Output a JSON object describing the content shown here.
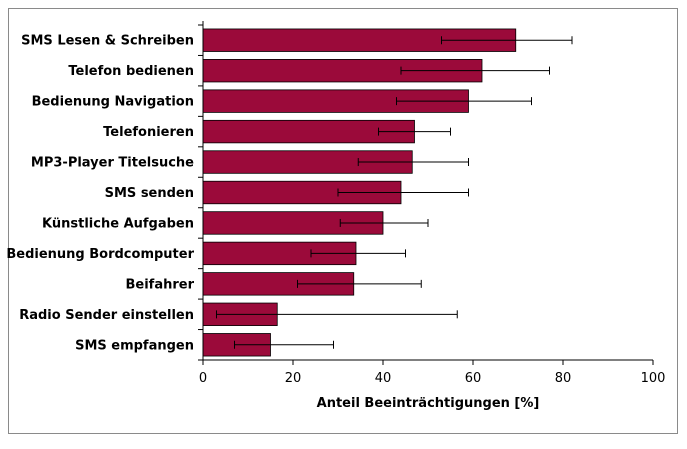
{
  "chart_data": {
    "type": "bar",
    "orientation": "horizontal",
    "categories": [
      "SMS Lesen & Schreiben",
      "Telefon bedienen",
      "Bedienung Navigation",
      "Telefonieren",
      "MP3-Player Titelsuche",
      "SMS senden",
      "Künstliche Aufgaben",
      "Bedienung Bordcomputer",
      "Beifahrer",
      "Radio Sender einstellen",
      "SMS empfangen"
    ],
    "values": [
      69.5,
      62,
      59,
      47,
      46.5,
      44,
      40,
      34,
      33.5,
      16.5,
      15
    ],
    "error_low": [
      53,
      44,
      43,
      39,
      34.5,
      30,
      30.5,
      24,
      21,
      3,
      7
    ],
    "error_high": [
      82,
      77,
      73,
      55,
      59,
      59,
      50,
      45,
      48.5,
      56.5,
      29
    ],
    "xlabel": "Anteil Beeinträchtigungen [%]",
    "ylabel": "",
    "xlim": [
      0,
      100
    ],
    "xticks": [
      0,
      20,
      40,
      60,
      80,
      100
    ],
    "grid": false,
    "bar_color": "#9b0a3a"
  }
}
